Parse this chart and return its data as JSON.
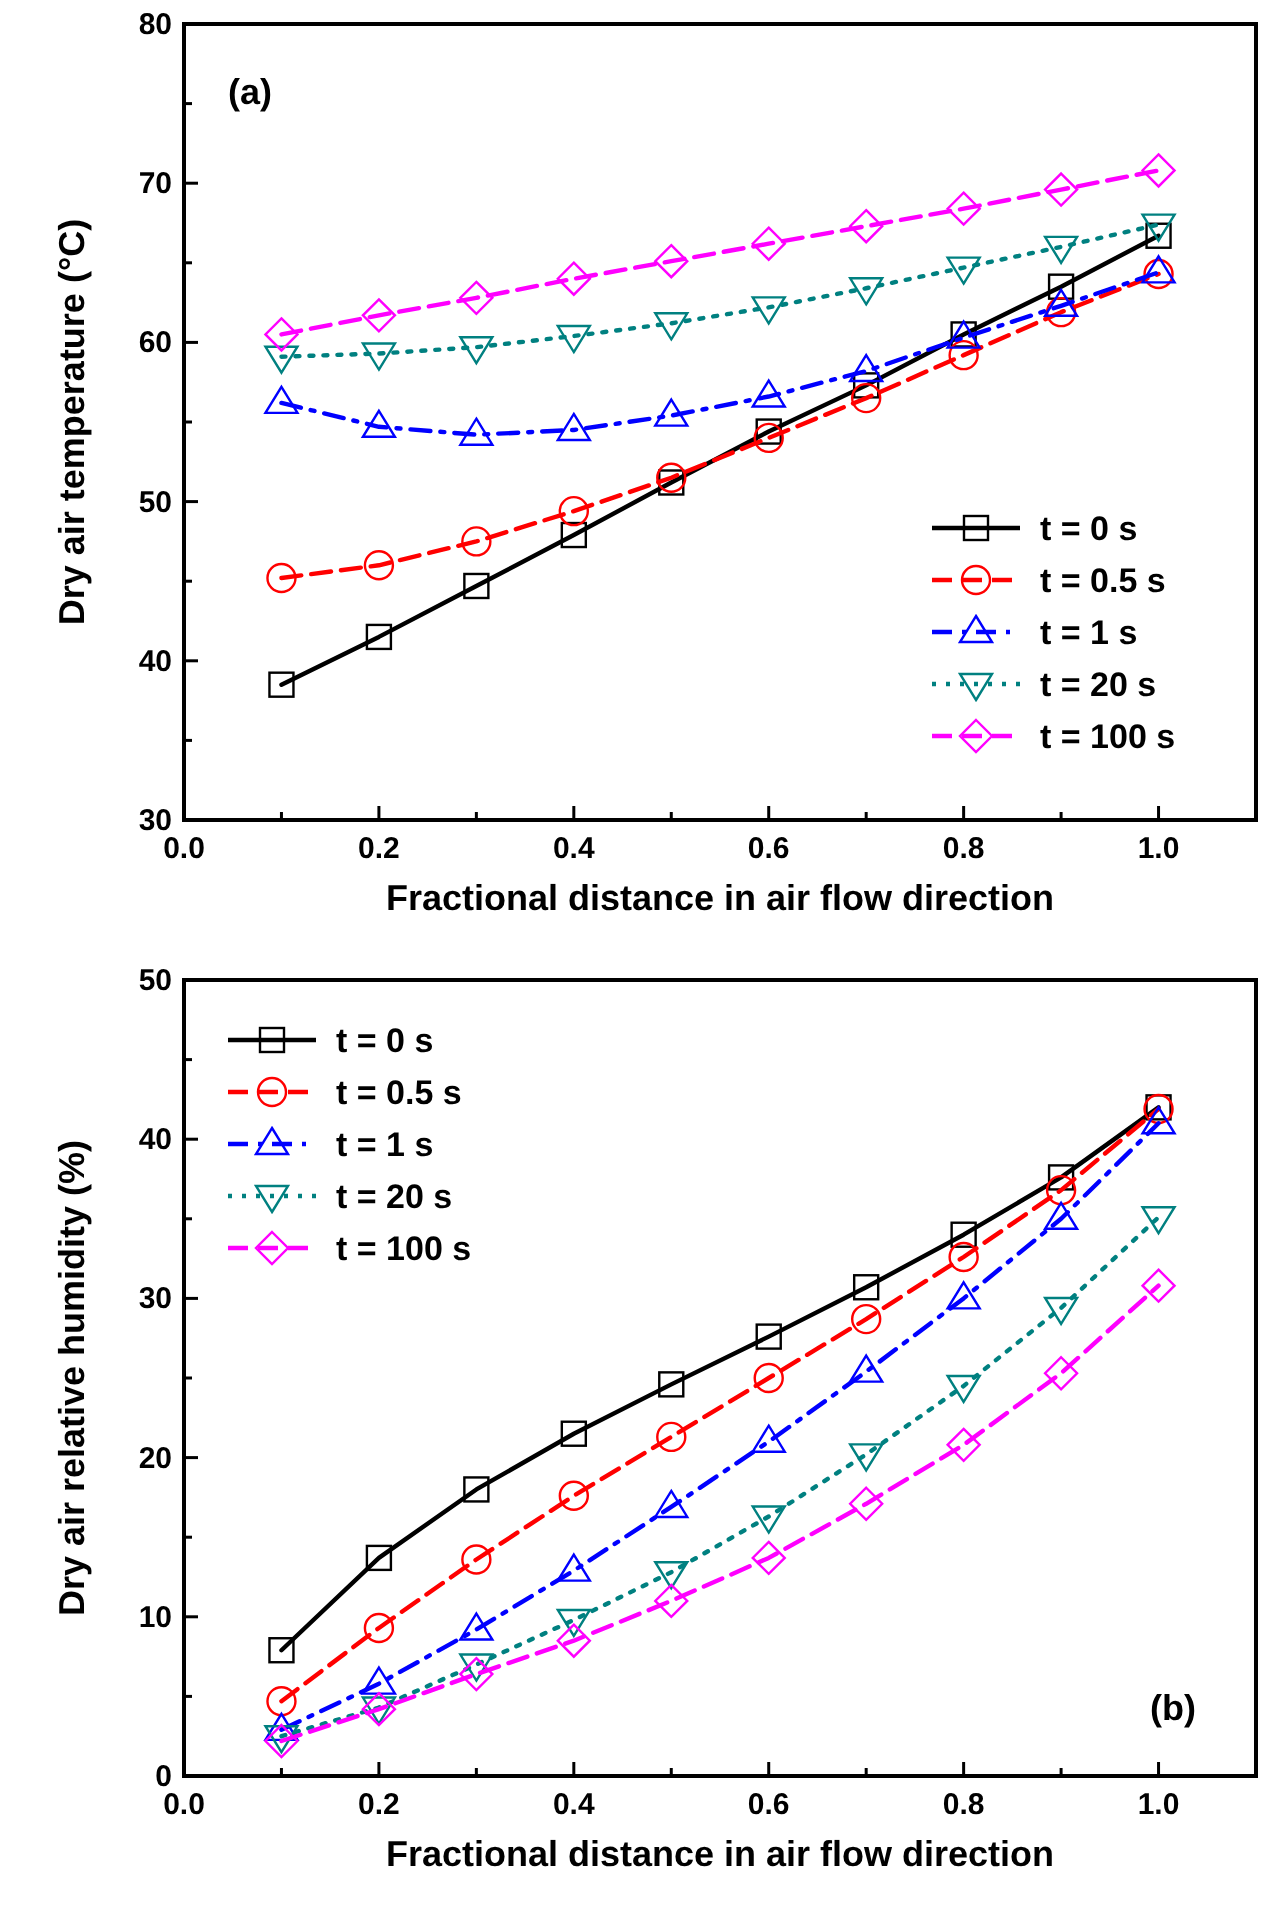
{
  "chart_data": [
    {
      "type": "line",
      "ylabel": "Dry air temperature (°C)",
      "xlabel": "Fractional distance in air flow direction",
      "annotations": [
        "(a)"
      ],
      "legend": "bottom right",
      "grid": false,
      "x": [
        0.1,
        0.2,
        0.3,
        0.4,
        0.5,
        0.6,
        0.7,
        0.8,
        0.9,
        1.0
      ],
      "xlim": [
        0,
        1.1
      ],
      "xticks": [
        {
          "value": 0,
          "label": "0.0"
        },
        {
          "value": 0.1,
          "label": null
        },
        {
          "value": 0.2,
          "label": "0.2"
        },
        {
          "value": 0.3,
          "label": null
        },
        {
          "value": 0.4,
          "label": "0.4"
        },
        {
          "value": 0.5,
          "label": null
        },
        {
          "value": 0.6,
          "label": "0.6"
        },
        {
          "value": 0.7,
          "label": null
        },
        {
          "value": 0.8,
          "label": "0.8"
        },
        {
          "value": 0.9,
          "label": null
        },
        {
          "value": 1.0,
          "label": "1.0"
        }
      ],
      "ylim": [
        30,
        80
      ],
      "yticks": [
        30,
        {
          "value": 35,
          "label": null
        },
        40,
        {
          "value": 45,
          "label": null
        },
        50,
        {
          "value": 55,
          "label": null
        },
        60,
        {
          "value": 65,
          "label": null
        },
        70,
        {
          "value": 75,
          "label": null
        },
        80
      ],
      "series": [
        {
          "name": "t = 0 s",
          "color": "#000000",
          "marker": "square",
          "line_style": "solid",
          "values": [
            38.5,
            41.5,
            44.7,
            47.9,
            51.2,
            54.4,
            57.3,
            60.5,
            63.5,
            66.7
          ]
        },
        {
          "name": "t = 0.5 s",
          "color": "#ff0000",
          "marker": "circle",
          "line_style": "dashed",
          "values": [
            45.2,
            46,
            47.5,
            49.4,
            51.5,
            54,
            56.5,
            59.2,
            61.9,
            64.3
          ]
        },
        {
          "name": "t = 1 s",
          "color": "#0000ff",
          "marker": "triangle",
          "line_style": "dashdot",
          "values": [
            56.2,
            54.7,
            54.2,
            54.5,
            55.4,
            56.6,
            58.2,
            60.3,
            62.3,
            64.4
          ]
        },
        {
          "name": "t = 20 s",
          "color": "#008080",
          "marker": "triangle-down",
          "line_style": "dotted",
          "values": [
            59.1,
            59.3,
            59.7,
            60.4,
            61.2,
            62.2,
            63.4,
            64.7,
            66,
            67.4
          ]
        },
        {
          "name": "t = 100 s",
          "color": "#ff00ff",
          "marker": "diamond",
          "line_style": "dashed",
          "values": [
            60.5,
            61.7,
            62.8,
            64,
            65.1,
            66.2,
            67.3,
            68.4,
            69.6,
            70.8
          ]
        }
      ]
    },
    {
      "type": "line",
      "ylabel": "Dry air relative humidity (%)",
      "xlabel": "Fractional distance in air flow direction",
      "annotations": [
        "(b)"
      ],
      "legend": "top left",
      "grid": false,
      "x": [
        0.1,
        0.2,
        0.3,
        0.4,
        0.5,
        0.6,
        0.7,
        0.8,
        0.9,
        1.0
      ],
      "xlim": [
        0,
        1.1
      ],
      "xticks": [
        {
          "value": 0,
          "label": "0.0"
        },
        {
          "value": 0.1,
          "label": null
        },
        {
          "value": 0.2,
          "label": "0.2"
        },
        {
          "value": 0.3,
          "label": null
        },
        {
          "value": 0.4,
          "label": "0.4"
        },
        {
          "value": 0.5,
          "label": null
        },
        {
          "value": 0.6,
          "label": "0.6"
        },
        {
          "value": 0.7,
          "label": null
        },
        {
          "value": 0.8,
          "label": "0.8"
        },
        {
          "value": 0.9,
          "label": null
        },
        {
          "value": 1.0,
          "label": "1.0"
        }
      ],
      "ylim": [
        0,
        50
      ],
      "yticks": [
        0,
        {
          "value": 5,
          "label": null
        },
        10,
        {
          "value": 15,
          "label": null
        },
        20,
        {
          "value": 25,
          "label": null
        },
        30,
        {
          "value": 35,
          "label": null
        },
        40,
        {
          "value": 45,
          "label": null
        },
        50
      ],
      "series": [
        {
          "name": "t = 0 s",
          "color": "#000000",
          "marker": "square",
          "line_style": "solid",
          "values": [
            7.9,
            13.7,
            18,
            21.5,
            24.6,
            27.6,
            30.7,
            34,
            37.6,
            42
          ]
        },
        {
          "name": "t = 0.5 s",
          "color": "#ff0000",
          "marker": "circle",
          "line_style": "dashed",
          "values": [
            4.7,
            9.3,
            13.6,
            17.6,
            21.3,
            25,
            28.7,
            32.6,
            36.8,
            41.9
          ]
        },
        {
          "name": "t = 1 s",
          "color": "#0000ff",
          "marker": "triangle",
          "line_style": "dashdot",
          "values": [
            2.9,
            5.8,
            9.2,
            12.9,
            16.9,
            21,
            25.4,
            30,
            35,
            41
          ]
        },
        {
          "name": "t = 20 s",
          "color": "#008080",
          "marker": "triangle-down",
          "line_style": "dotted",
          "values": [
            2.5,
            4.3,
            7,
            9.8,
            12.8,
            16.3,
            20.2,
            24.5,
            29.4,
            35.1
          ]
        },
        {
          "name": "t = 100 s",
          "color": "#ff00ff",
          "marker": "diamond",
          "line_style": "dashed",
          "values": [
            2.2,
            4.2,
            6.4,
            8.5,
            11,
            13.7,
            17.1,
            20.8,
            25.3,
            30.8
          ]
        }
      ]
    }
  ]
}
